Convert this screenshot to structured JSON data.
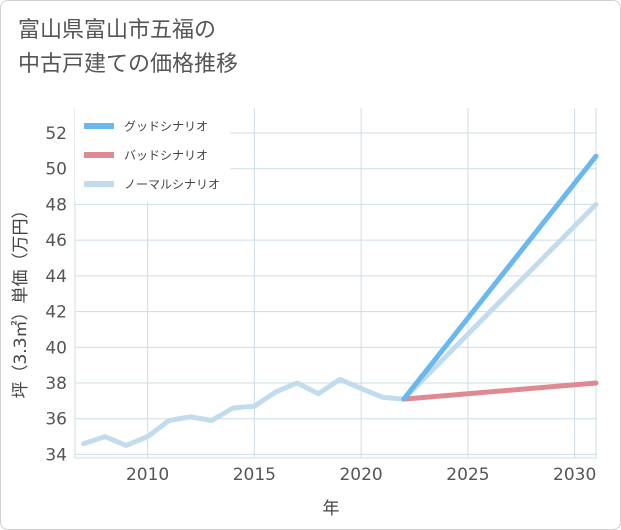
{
  "title": {
    "line1": "富山県富山市五福の",
    "line2": "中古戸建ての価格推移"
  },
  "colors": {
    "good": "#6ab8ee",
    "bad": "#df8a92",
    "normal": "#c2dcee",
    "grid": "#cfdde6",
    "text": "#555555"
  },
  "chart_data": {
    "type": "line",
    "xlabel": "年",
    "ylabel": "坪（3.3㎡）単価（万円）",
    "xlim": [
      2006.6,
      2031
    ],
    "ylim": [
      33.8,
      53.4
    ],
    "xticks": [
      2010,
      2015,
      2020,
      2025,
      2030
    ],
    "yticks": [
      34,
      36,
      38,
      40,
      42,
      44,
      46,
      48,
      50,
      52
    ],
    "grid": true,
    "legend_position": "top-left",
    "series": [
      {
        "name": "グッドシナリオ",
        "key": "good",
        "x": [
          2022,
          2031
        ],
        "y": [
          37.1,
          50.7
        ]
      },
      {
        "name": "バッドシナリオ",
        "key": "bad",
        "x": [
          2022,
          2025,
          2028,
          2031
        ],
        "y": [
          37.1,
          37.4,
          37.7,
          38.0
        ]
      },
      {
        "name": "ノーマルシナリオ",
        "key": "normal",
        "x": [
          2007,
          2008,
          2009,
          2010,
          2011,
          2012,
          2013,
          2014,
          2015,
          2016,
          2017,
          2018,
          2019,
          2020,
          2021,
          2022,
          2031
        ],
        "y": [
          34.6,
          35.0,
          34.5,
          35.0,
          35.9,
          36.1,
          35.9,
          36.6,
          36.7,
          37.5,
          38.0,
          37.4,
          38.2,
          37.7,
          37.2,
          37.1,
          48.0
        ]
      }
    ]
  }
}
